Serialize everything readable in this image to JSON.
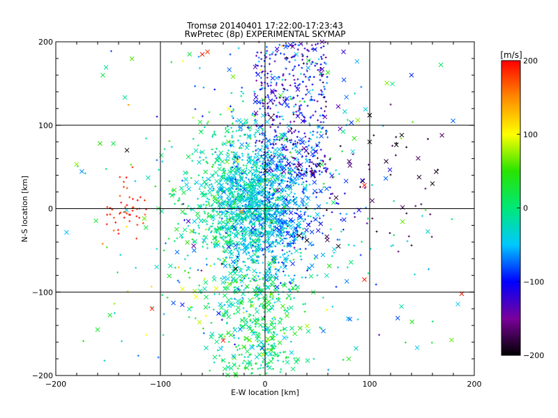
{
  "chart_data": {
    "type": "scatter",
    "title": "Tromsø 20140401 17:22:00-17:23:43",
    "subtitle": "RwPretec (8p) EXPERIMENTAL SKYMAP",
    "xlabel": "E-W location [km]",
    "ylabel": "N-S location [km]",
    "xlim": [
      -200,
      200
    ],
    "ylim": [
      -200,
      200
    ],
    "xticks": [
      -200,
      -100,
      0,
      100,
      200
    ],
    "yticks": [
      -200,
      -100,
      0,
      100,
      200
    ],
    "grid": true,
    "colorbar": {
      "label": "[m/s]",
      "range": [
        -200,
        200
      ],
      "ticks": [
        200,
        100,
        0,
        -100,
        -200
      ],
      "placement": "right",
      "colormap": "rainbow: black(-200) → purple → blue(-100) → cyan → green(0) → yellow(100) → red(200)"
    },
    "markers": [
      "plus (small)",
      "cross (large)"
    ],
    "point_count_estimate": 3000,
    "point_distribution": "Dense cloud centered near E-W -10..0 km, N-S 0..10 km; velocities mostly -80..20 m/s (cyan/green); blue/purple cluster near x 0..50, y 50..200; green band near x -30..0, y -100..-200; small red (+180..+200 m/s) cluster near x -150..-110, y -40..20; sparse black (-200 m/s) points on east side x 30..180",
    "points_sample": [
      {
        "x": -60,
        "y": 185,
        "v": 190,
        "m": "x"
      },
      {
        "x": -55,
        "y": 188,
        "v": 180,
        "m": "x"
      },
      {
        "x": 75,
        "y": 188,
        "v": -120,
        "m": "x"
      },
      {
        "x": -155,
        "y": 160,
        "v": 20,
        "m": "x"
      },
      {
        "x": 140,
        "y": 160,
        "v": -90,
        "m": "x"
      },
      {
        "x": 100,
        "y": 112,
        "v": -200,
        "m": "x"
      },
      {
        "x": 100,
        "y": 80,
        "v": -200,
        "m": "x"
      },
      {
        "x": 160,
        "y": 30,
        "v": -200,
        "m": "x"
      },
      {
        "x": -132,
        "y": 70,
        "v": -200,
        "m": "x"
      },
      {
        "x": -145,
        "y": 78,
        "v": 20,
        "m": "x"
      },
      {
        "x": 95,
        "y": 28,
        "v": 190,
        "m": "x"
      },
      {
        "x": 95,
        "y": -85,
        "v": 190,
        "m": "x"
      },
      {
        "x": 188,
        "y": -102,
        "v": 190,
        "m": "x"
      },
      {
        "x": -108,
        "y": -120,
        "v": 190,
        "m": "x"
      },
      {
        "x": -160,
        "y": -145,
        "v": 30,
        "m": "x"
      },
      {
        "x": 80,
        "y": -180,
        "v": 40,
        "m": "x"
      },
      {
        "x": 12,
        "y": 22,
        "v": -150,
        "m": "x"
      },
      {
        "x": -28,
        "y": -72,
        "v": -200,
        "m": "x"
      },
      {
        "x": -40,
        "y": -158,
        "v": 190,
        "m": "x"
      },
      {
        "x": 40,
        "y": -38,
        "v": -200,
        "m": "x"
      },
      {
        "x": -120,
        "y": 0,
        "v": 190,
        "m": "+"
      },
      {
        "x": -115,
        "y": 10,
        "v": 180,
        "m": "+"
      },
      {
        "x": -140,
        "y": -30,
        "v": 195,
        "m": "+"
      }
    ]
  }
}
